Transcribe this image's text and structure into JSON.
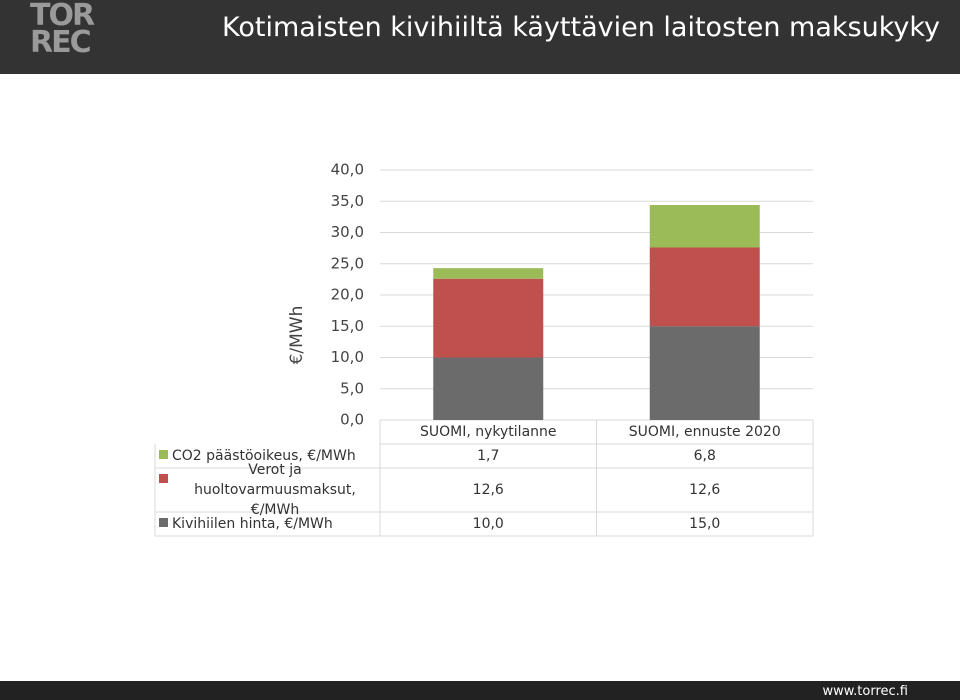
{
  "header": {
    "logo": [
      "TOR",
      "REC"
    ]
  },
  "chart_data": {
    "type": "stacked_bar",
    "title": "Kotimaisten kivihiiltä käyttävien laitosten maksukyky",
    "y_label": "€/MWh",
    "categories": [
      "SUOMI, nykytilanne",
      "SUOMI, ennuste 2020"
    ],
    "series": [
      {
        "name": "CO2 päästöoikeus, €/MWh",
        "color": "#9bbb59",
        "values": [
          1.7,
          6.8
        ],
        "value_labels": [
          "1,7",
          "6,8"
        ]
      },
      {
        "name": "Verot ja huoltovarmuusmaksut, €/MWh",
        "color": "#c0504d",
        "values": [
          12.6,
          12.6
        ],
        "value_labels": [
          "12,6",
          "12,6"
        ]
      },
      {
        "name": "Kivihiilen hinta, €/MWh",
        "color": "#6b6b6b",
        "values": [
          10.0,
          15.0
        ],
        "value_labels": [
          "10,0",
          "15,0"
        ]
      }
    ],
    "ylim": [
      0,
      40
    ],
    "yticks": [
      {
        "value": 0,
        "label": "0,0"
      },
      {
        "value": 5,
        "label": "5,0"
      },
      {
        "value": 10,
        "label": "10,0"
      },
      {
        "value": 15,
        "label": "15,0"
      },
      {
        "value": 20,
        "label": "20,0"
      },
      {
        "value": 25,
        "label": "25,0"
      },
      {
        "value": 30,
        "label": "30,0"
      },
      {
        "value": 35,
        "label": "35,0"
      },
      {
        "value": 40,
        "label": "40,0"
      }
    ],
    "grid": true
  },
  "footer": {
    "url": "www.torrec.fi"
  }
}
